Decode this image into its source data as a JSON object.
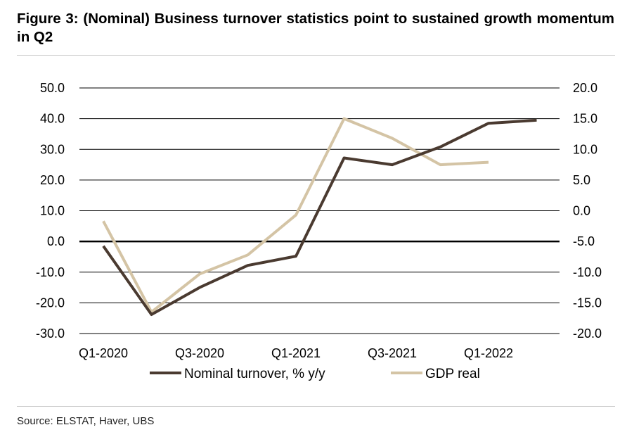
{
  "figure": {
    "title": "Figure 3: (Nominal) Business turnover statistics point to sustained growth momentum in Q2",
    "source": "Source: ELSTAT, Haver, UBS"
  },
  "chart_data": {
    "type": "line",
    "x": [
      "Q1-2020",
      "Q2-2020",
      "Q3-2020",
      "Q4-2020",
      "Q1-2021",
      "Q2-2021",
      "Q3-2021",
      "Q4-2021",
      "Q1-2022",
      "Q2-2022"
    ],
    "x_tick_labels": [
      "Q1-2020",
      "Q3-2020",
      "Q1-2021",
      "Q3-2021",
      "Q1-2022"
    ],
    "y_left": {
      "lim": [
        -30,
        50
      ],
      "ticks": [
        "-30.0",
        "-20.0",
        "-10.0",
        "0.0",
        "10.0",
        "20.0",
        "30.0",
        "40.0",
        "50.0"
      ]
    },
    "y_right": {
      "lim": [
        -20,
        20
      ],
      "ticks": [
        "-20.0",
        "-15.0",
        "-10.0",
        "-5.0",
        "0.0",
        "5.0",
        "10.0",
        "15.0",
        "20.0"
      ]
    },
    "series": [
      {
        "name": "Nominal turnover, % y/y",
        "axis": "left",
        "color": "#4a3a30",
        "values": [
          -1.5,
          -23.8,
          -15.0,
          -7.8,
          -4.8,
          27.2,
          25.0,
          30.8,
          38.5,
          39.5
        ]
      },
      {
        "name": "GDP real",
        "axis": "right",
        "color": "#d4c4a5",
        "values": [
          -1.7,
          -16.5,
          -10.3,
          -7.2,
          -0.7,
          15.0,
          11.8,
          7.5,
          7.9,
          null
        ]
      }
    ],
    "zero_line": true,
    "grid": "horizontal",
    "legend": "bottom"
  }
}
